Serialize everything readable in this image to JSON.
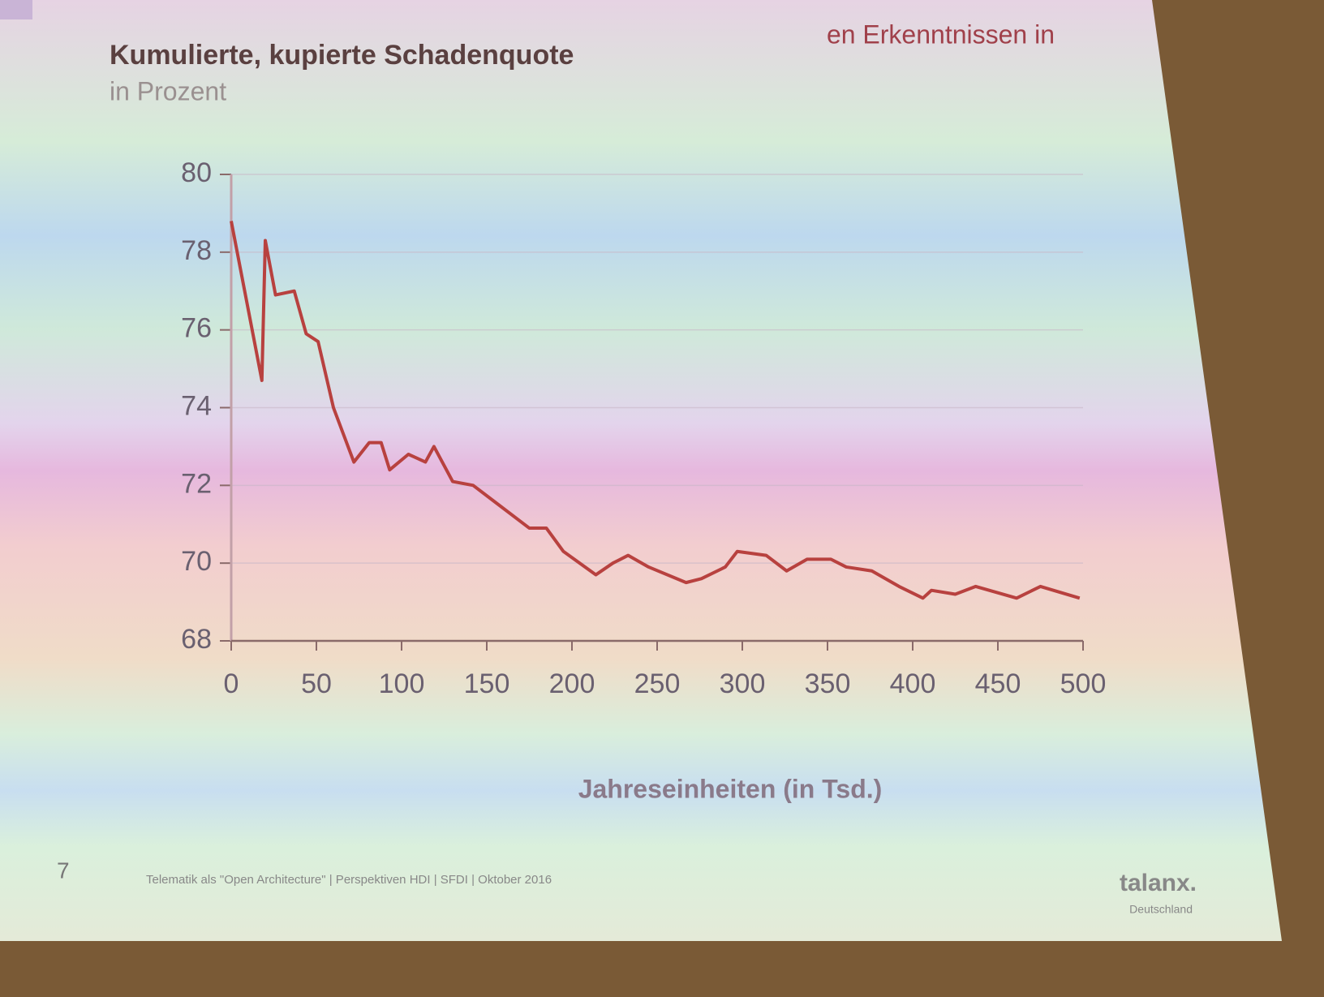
{
  "header": {
    "text": "en Erkenntnissen in"
  },
  "chart_data": {
    "type": "line",
    "title": "Kumulierte, kupierte Schadenquote",
    "subtitle": "in Prozent",
    "x_label": "Jahreseinheiten (in Tsd.)",
    "x": [
      0,
      18,
      20,
      26,
      37,
      44,
      51,
      60,
      72,
      81,
      88,
      93,
      104,
      114,
      119,
      130,
      142,
      154,
      175,
      185,
      195,
      214,
      224,
      233,
      245,
      267,
      276,
      290,
      297,
      314,
      326,
      338,
      352,
      361,
      376,
      392,
      406,
      411,
      425,
      437,
      461,
      475,
      498
    ],
    "series": [
      {
        "name": "Schadenquote",
        "color": "#b8413f",
        "values": [
          78.8,
          74.7,
          78.3,
          76.9,
          77.0,
          75.9,
          75.7,
          74.0,
          72.6,
          73.1,
          73.1,
          72.4,
          72.8,
          72.6,
          73.0,
          72.1,
          72.0,
          71.6,
          70.9,
          70.9,
          70.3,
          69.7,
          70.0,
          70.2,
          69.9,
          69.5,
          69.6,
          69.9,
          70.3,
          70.2,
          69.8,
          70.1,
          70.1,
          69.9,
          69.8,
          69.4,
          69.1,
          69.3,
          69.2,
          69.4,
          69.1,
          69.4,
          69.1
        ]
      }
    ],
    "xlim": [
      0,
      500
    ],
    "xticks": [
      0,
      50,
      100,
      150,
      200,
      250,
      300,
      350,
      400,
      450,
      500
    ],
    "ylim": [
      68,
      80
    ],
    "yticks": [
      68,
      70,
      72,
      74,
      76,
      78,
      80
    ],
    "grid": true
  },
  "footer": {
    "page": "7",
    "text": "Telematik als \"Open Architecture\" | Perspektiven HDI | SFDI | Oktober 2016",
    "logo": "talanx.",
    "logo_sub": "Deutschland"
  }
}
